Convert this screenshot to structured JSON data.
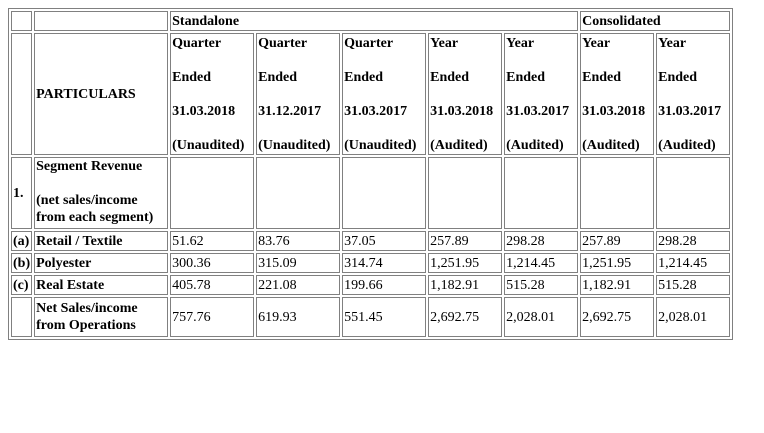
{
  "table": {
    "group_headers": {
      "standalone": "Standalone",
      "consolidated": "Consolidated"
    },
    "particulars_label": "PARTICULARS",
    "columns": [
      {
        "l1": "Quarter",
        "l2": "Ended",
        "l3": "31.03.2018",
        "l4": "(Unaudited)"
      },
      {
        "l1": "Quarter",
        "l2": "Ended",
        "l3": "31.12.2017",
        "l4": "(Unaudited)"
      },
      {
        "l1": "Quarter",
        "l2": "Ended",
        "l3": "31.03.2017",
        "l4": "(Unaudited)"
      },
      {
        "l1": "Year",
        "l2": "Ended",
        "l3": "31.03.2018",
        "l4": "(Audited)"
      },
      {
        "l1": "Year",
        "l2": "Ended",
        "l3": "31.03.2017",
        "l4": "(Audited)"
      },
      {
        "l1": "Year",
        "l2": "Ended",
        "l3": "31.03.2018",
        "l4": "(Audited)"
      },
      {
        "l1": "Year",
        "l2": "Ended",
        "l3": "31.03.2017",
        "l4": "(Audited)"
      }
    ],
    "section": {
      "num": "1.",
      "title": "Segment Revenue",
      "subtitle_1": "(net sales/income",
      "subtitle_2": "from each segment)"
    },
    "rows": [
      {
        "id": "(a)",
        "label": "Retail / Textile",
        "values": [
          "51.62",
          "83.76",
          "37.05",
          "257.89",
          "298.28",
          "257.89",
          "298.28"
        ]
      },
      {
        "id": "(b)",
        "label": "Polyester",
        "values": [
          "300.36",
          "315.09",
          "314.74",
          "1,251.95",
          "1,214.45",
          "1,251.95",
          "1,214.45"
        ]
      },
      {
        "id": "(c)",
        "label": "Real Estate",
        "values": [
          "405.78",
          "221.08",
          "199.66",
          "1,182.91",
          "515.28",
          "1,182.91",
          "515.28"
        ]
      }
    ],
    "total": {
      "label_1": "Net Sales/income",
      "label_2": "from Operations",
      "values": [
        "757.76",
        "619.93",
        "551.45",
        "2,692.75",
        "2,028.01",
        "2,692.75",
        "2,028.01"
      ]
    }
  }
}
